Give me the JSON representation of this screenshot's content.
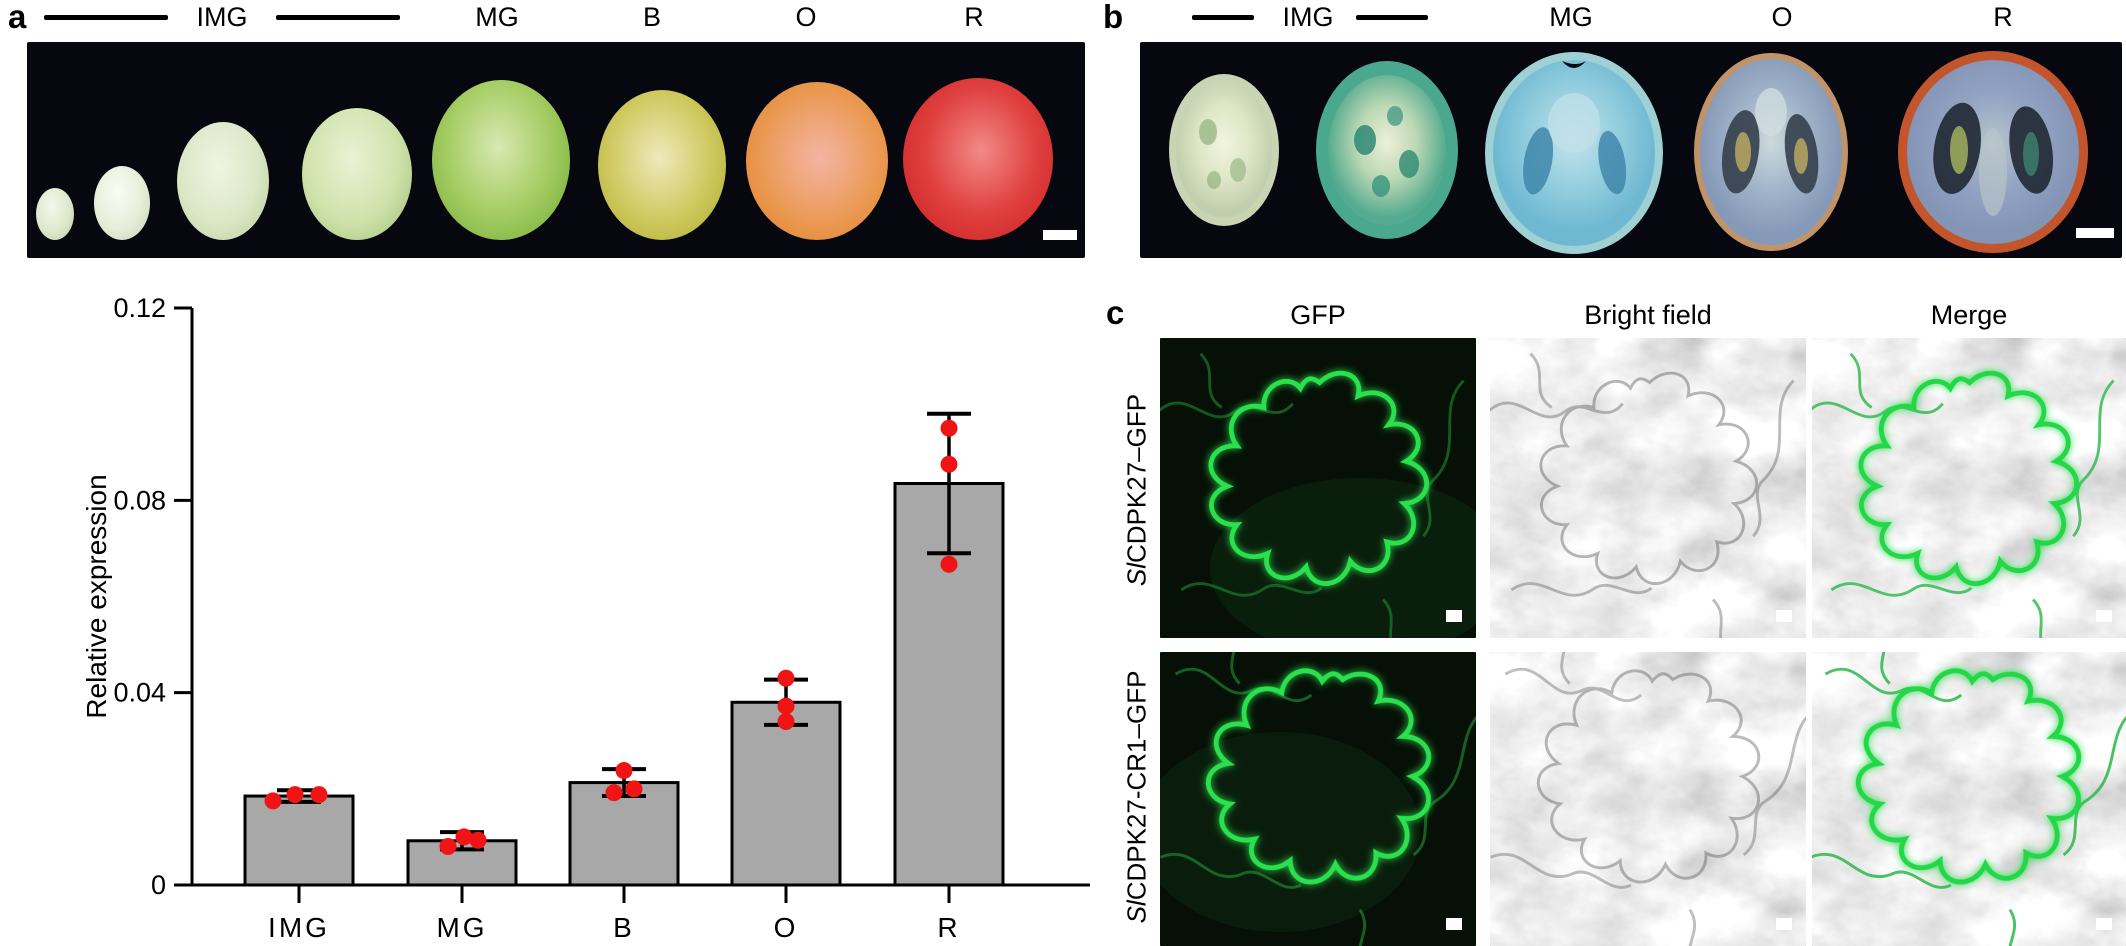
{
  "figure": {
    "panel_a": {
      "letter": "a",
      "stages": [
        "IMG",
        "MG",
        "B",
        "O",
        "R"
      ]
    },
    "panel_b": {
      "letter": "b",
      "stages": [
        "IMG",
        "MG",
        "O",
        "R"
      ]
    },
    "panel_c": {
      "letter": "c",
      "col_headers": [
        "GFP",
        "Bright field",
        "Merge"
      ],
      "rows": [
        {
          "italic": "Sl",
          "rest": "CDPK27–GFP"
        },
        {
          "italic": "Sl",
          "rest": "CDPK27-CR1–GFP"
        }
      ]
    }
  },
  "chart_data": {
    "type": "bar",
    "title": "",
    "xlabel": "",
    "ylabel": "Relative expression",
    "categories": [
      "IMG",
      "MG",
      "B",
      "O",
      "R"
    ],
    "values": [
      0.0185,
      0.0092,
      0.0213,
      0.038,
      0.0835
    ],
    "errors": [
      0.0012,
      0.0018,
      0.0028,
      0.0047,
      0.0145
    ],
    "points": [
      [
        0.0175,
        0.0188,
        0.0188
      ],
      [
        0.008,
        0.01,
        0.0093
      ],
      [
        0.0192,
        0.02,
        0.0238
      ],
      [
        0.034,
        0.0372,
        0.043
      ],
      [
        0.0667,
        0.0875,
        0.095
      ]
    ],
    "point_dx": [
      [
        -26,
        -4,
        20
      ],
      [
        -14,
        2,
        16
      ],
      [
        -10,
        10,
        0
      ],
      [
        0,
        0,
        0
      ],
      [
        0,
        0,
        0
      ]
    ],
    "ylim": [
      0,
      0.12
    ],
    "yticks": [
      0,
      0.04,
      0.08,
      0.12
    ],
    "ytick_labels": [
      "0",
      "0.04",
      "0.08",
      "0.12"
    ],
    "grid": "off",
    "legend": "none",
    "bar_color": "#a8a8a8",
    "bar_edge_color": "#000000",
    "point_color": "#f01414",
    "error_color": "#000000"
  }
}
